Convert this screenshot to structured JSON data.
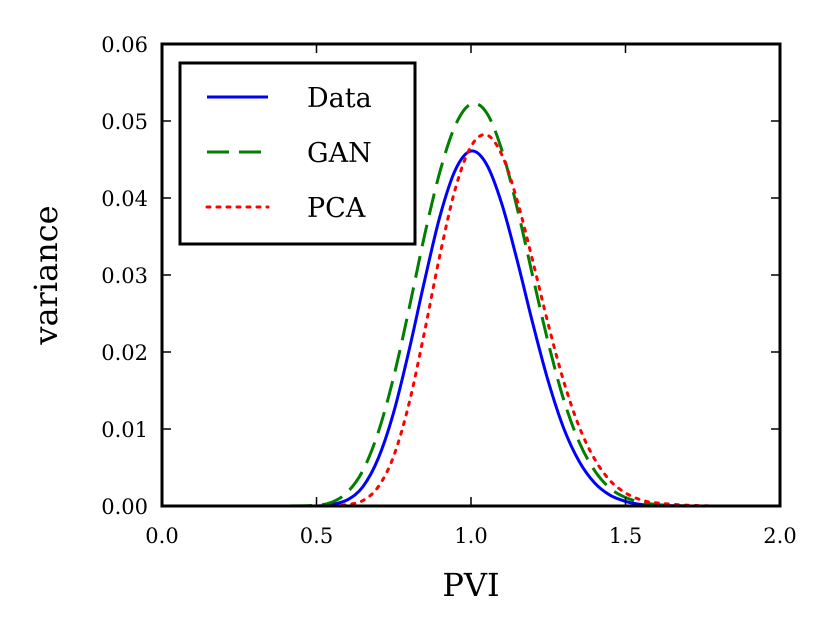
{
  "chart_data": {
    "type": "line",
    "title": "",
    "xlabel": "PVI",
    "ylabel": "variance",
    "xlim": [
      0.0,
      2.0
    ],
    "ylim": [
      0.0,
      0.06
    ],
    "xticks": [
      0.0,
      0.5,
      1.0,
      1.5,
      2.0
    ],
    "xtick_labels": [
      "0.0",
      "0.5",
      "1.0",
      "1.5",
      "2.0"
    ],
    "yticks": [
      0.0,
      0.01,
      0.02,
      0.03,
      0.04,
      0.05,
      0.06
    ],
    "ytick_labels": [
      "0.00",
      "0.01",
      "0.02",
      "0.03",
      "0.04",
      "0.05",
      "0.06"
    ],
    "grid": false,
    "legend": "top-left",
    "x": [
      0.0,
      0.1,
      0.2,
      0.3,
      0.4,
      0.5,
      0.55,
      0.6,
      0.65,
      0.7,
      0.75,
      0.8,
      0.85,
      0.9,
      0.95,
      1.0,
      1.05,
      1.1,
      1.15,
      1.2,
      1.25,
      1.3,
      1.35,
      1.4,
      1.45,
      1.5,
      1.55,
      1.6,
      1.7,
      1.8,
      1.9,
      2.0
    ],
    "series": [
      {
        "name": "Data",
        "color": "#0000ff",
        "style": "solid",
        "values": [
          0.0,
          0.0,
          0.0,
          0.0,
          0.0,
          0.0,
          0.0002,
          0.0008,
          0.0025,
          0.0062,
          0.0122,
          0.0203,
          0.0293,
          0.0377,
          0.0437,
          0.0461,
          0.0444,
          0.0392,
          0.0318,
          0.0237,
          0.0162,
          0.0101,
          0.0058,
          0.003,
          0.0014,
          0.0006,
          0.0002,
          0.0001,
          0.0,
          0.0,
          0.0,
          0.0
        ]
      },
      {
        "name": "GAN",
        "color": "#007f00",
        "style": "dashed",
        "values": [
          0.0,
          0.0,
          0.0,
          0.0,
          0.0,
          0.0001,
          0.0005,
          0.0018,
          0.0046,
          0.0096,
          0.0168,
          0.0257,
          0.0352,
          0.0435,
          0.0495,
          0.0522,
          0.0511,
          0.0462,
          0.0386,
          0.0298,
          0.0212,
          0.0138,
          0.0083,
          0.0046,
          0.0023,
          0.0011,
          0.0005,
          0.0002,
          0.0,
          0.0,
          0.0,
          0.0
        ]
      },
      {
        "name": "PCA",
        "color": "#ff0000",
        "style": "dotted",
        "values": [
          0.0,
          0.0,
          0.0,
          0.0,
          0.0,
          0.0,
          0.0,
          0.0002,
          0.0007,
          0.0025,
          0.0065,
          0.0134,
          0.0227,
          0.0327,
          0.0413,
          0.0467,
          0.0482,
          0.0456,
          0.0396,
          0.0318,
          0.0236,
          0.0162,
          0.0103,
          0.0061,
          0.0033,
          0.0017,
          0.0008,
          0.0004,
          0.0001,
          0.0,
          0.0,
          0.0
        ]
      }
    ]
  }
}
